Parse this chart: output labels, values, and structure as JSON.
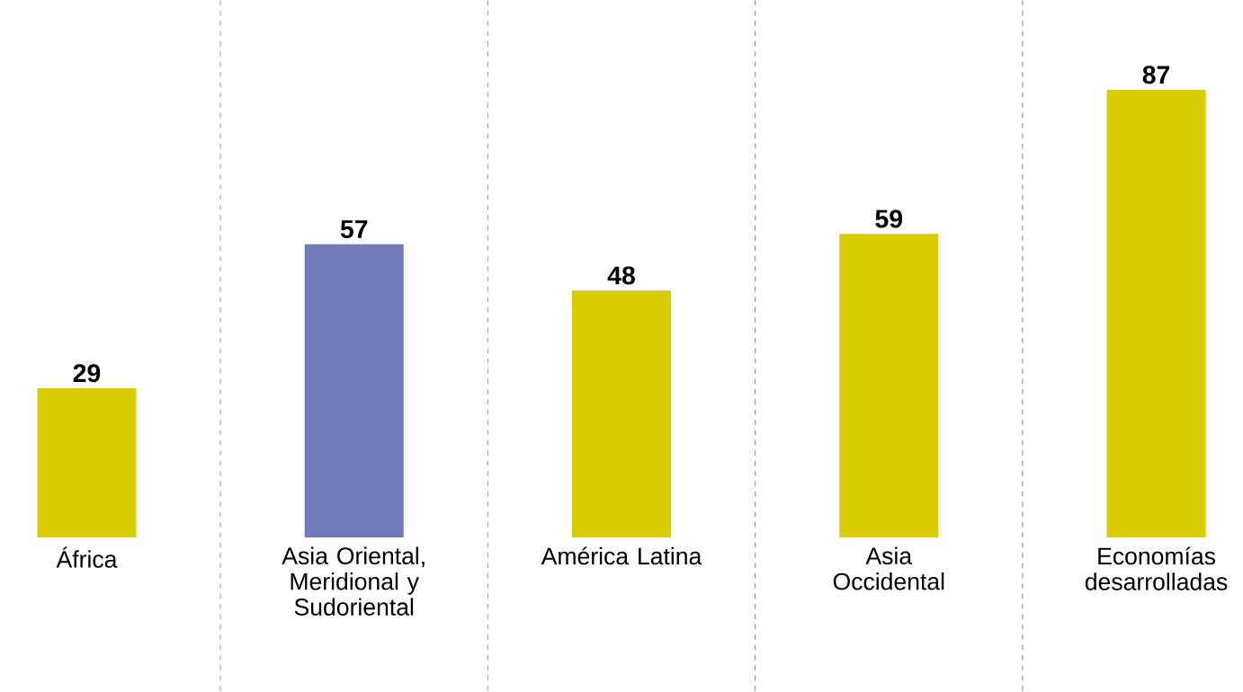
{
  "chart_data": {
    "type": "bar",
    "categories": [
      "África",
      "Asia Oriental, Meridional y Sudoriental",
      "América Latina",
      "Asia Occidental",
      "Economías desarrolladas"
    ],
    "values": [
      29,
      57,
      48,
      59,
      87
    ],
    "colors": [
      "#d9cc00",
      "#7479b9",
      "#d9cc00",
      "#d9cc00",
      "#d9cc00"
    ],
    "data_labels": true,
    "grid": "x"
  }
}
